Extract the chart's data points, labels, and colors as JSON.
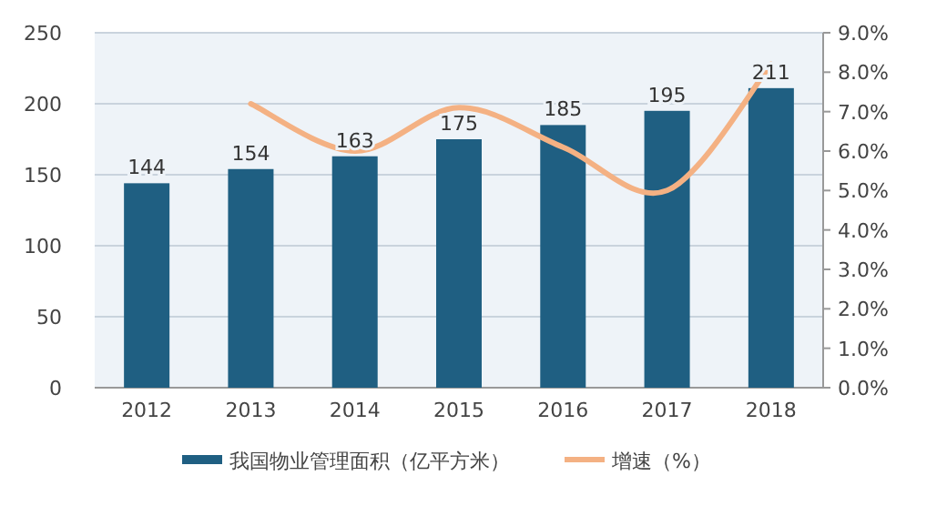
{
  "chart_data": {
    "type": "bar",
    "categories": [
      "2012",
      "2013",
      "2014",
      "2015",
      "2016",
      "2017",
      "2018"
    ],
    "series": [
      {
        "name": "我国物业管理面积（亿平方米）",
        "color": "#1f5f82",
        "values": [
          144,
          154,
          163,
          175,
          185,
          195,
          211
        ],
        "value_labels": [
          "144",
          "154",
          "163",
          "175",
          "185",
          "195",
          "211"
        ]
      },
      {
        "name": "增速（%）",
        "type": "line",
        "axis": "y2",
        "color": "#f4b183",
        "values": [
          null,
          7.2,
          6.0,
          7.1,
          6.1,
          5.0,
          8.2
        ]
      }
    ],
    "ylim": [
      0,
      250
    ],
    "yticks": [
      0,
      50,
      100,
      150,
      200,
      250
    ],
    "y2lim": [
      0,
      9
    ],
    "y2ticks": [
      {
        "value": 0,
        "label": "0.0%"
      },
      {
        "value": 1,
        "label": "1.0%"
      },
      {
        "value": 2,
        "label": "2.0%"
      },
      {
        "value": 3,
        "label": "3.0%"
      },
      {
        "value": 4,
        "label": "4.0%"
      },
      {
        "value": 5,
        "label": "5.0%"
      },
      {
        "value": 6,
        "label": "6.0%"
      },
      {
        "value": 7,
        "label": "7.0%"
      },
      {
        "value": 8,
        "label": "8.0%"
      },
      {
        "value": 9,
        "label": "9.0%"
      }
    ],
    "grid": "y",
    "legend": "bottom"
  }
}
